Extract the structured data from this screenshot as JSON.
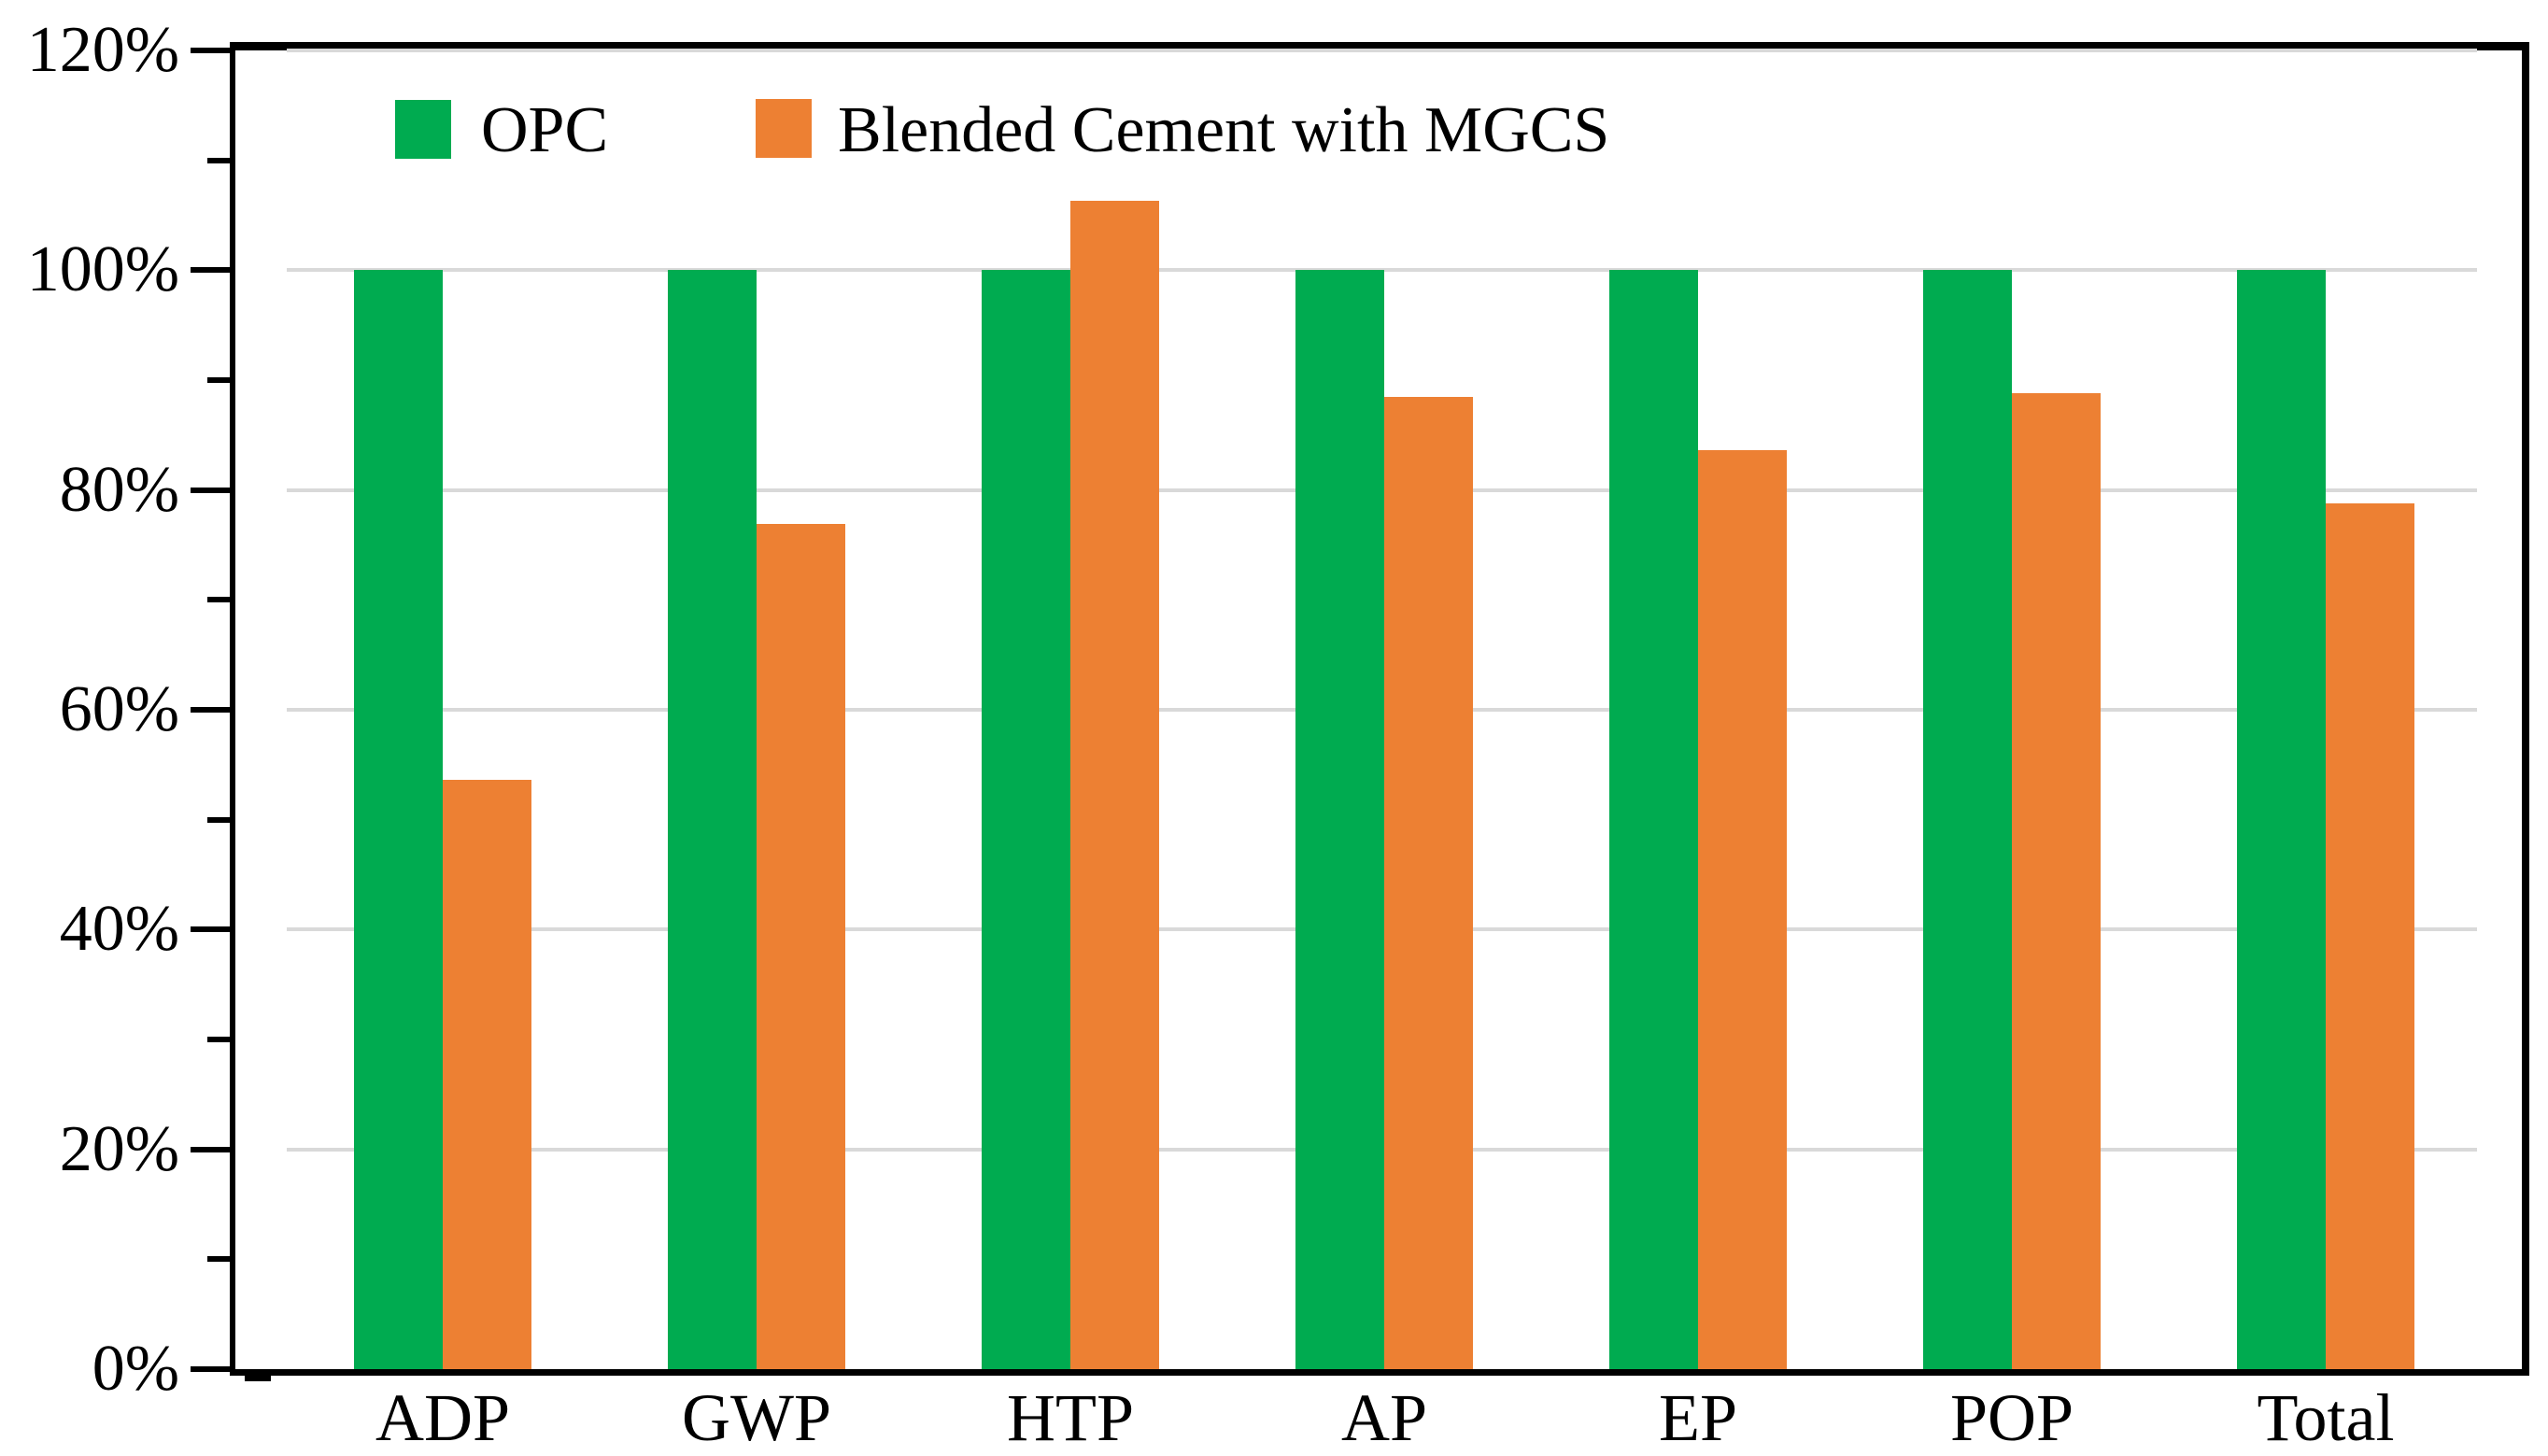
{
  "chart_data": {
    "type": "bar",
    "title": "",
    "xlabel": "",
    "ylabel": "",
    "categories": [
      "ADP",
      "GWP",
      "HTP",
      "AP",
      "EP",
      "POP",
      "Total"
    ],
    "series": [
      {
        "name": "OPC",
        "color": "#00AB50",
        "values": [
          100,
          100,
          100,
          100,
          100,
          100,
          100
        ]
      },
      {
        "name": "Blended Cement with MGCS",
        "color": "#ED8033",
        "values": [
          53.6,
          76.9,
          106.3,
          88.5,
          83.6,
          88.8,
          78.8
        ]
      }
    ],
    "ylim": [
      0,
      120
    ],
    "y_major_step": 20,
    "y_minor_step": 10,
    "y_tick_labels": [
      "0%",
      "20%",
      "40%",
      "60%",
      "80%",
      "100%",
      "120%"
    ],
    "grid": true,
    "gridline_color": "#d9d9d9",
    "axis_color": "#000000",
    "legend_position": "top-inside"
  }
}
